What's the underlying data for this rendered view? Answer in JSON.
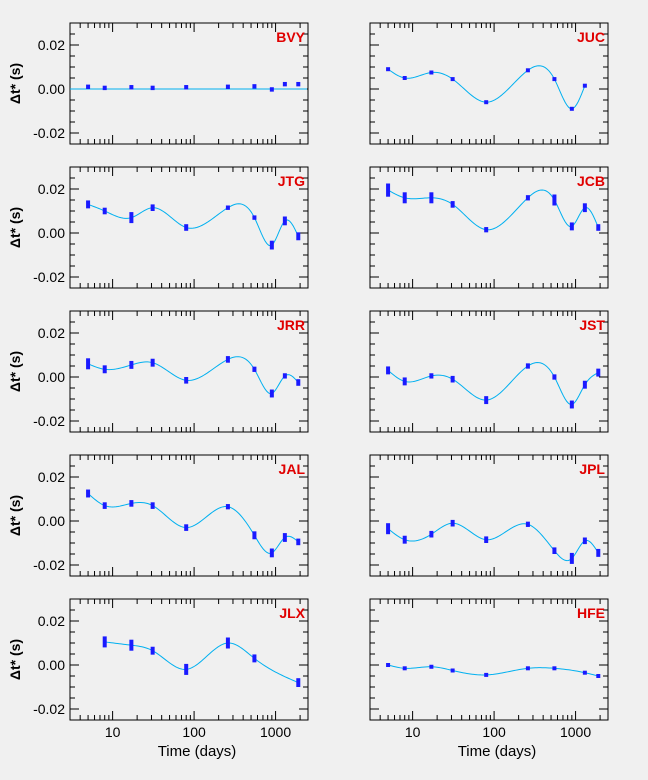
{
  "colors": {
    "background": "#f0f0f0",
    "marker": "#1a1aff",
    "curve": "#00b0f0",
    "label": "#e00000"
  },
  "chart_data": {
    "type": "scatter",
    "x_scale": "log",
    "xlim": [
      3,
      2500
    ],
    "ylim": [
      -0.025,
      0.03
    ],
    "x_ticks": [
      10,
      100,
      1000
    ],
    "x_tick_labels": [
      "10",
      "100",
      "1000"
    ],
    "y_ticks": [
      -0.02,
      0,
      0.02
    ],
    "y_tick_labels": [
      "-0.02",
      "0.00",
      "0.02"
    ],
    "ylabel": "Δt* (s)",
    "xlabel": "Time (days)",
    "grid": false,
    "x": [
      5,
      8,
      17,
      31,
      80,
      260,
      550,
      900,
      1300,
      1900
    ],
    "panels": [
      {
        "name": "BVY",
        "x": [
          5,
          8,
          17,
          31,
          80,
          260,
          550,
          900,
          1300,
          1900
        ],
        "y": [
          0.001,
          0.0005,
          0.0008,
          0.0005,
          0.0008,
          0.001,
          0.0012,
          -0.0002,
          0.0022,
          0.0022
        ],
        "err": [
          0.001,
          0.001,
          0.001,
          0.001,
          0.001,
          0.001,
          0.001,
          0.001,
          0.001,
          0.001
        ],
        "curve": "flat"
      },
      {
        "name": "JUC",
        "x": [
          5,
          8,
          17,
          31,
          80,
          260,
          550,
          900,
          1300
        ],
        "y": [
          0.009,
          0.005,
          0.0075,
          0.0045,
          -0.006,
          0.0085,
          0.0045,
          -0.009,
          0.0015
        ],
        "err": [
          0.0008,
          0.0008,
          0.0008,
          0.0008,
          0.0008,
          0.0008,
          0.0008,
          0.0008,
          0.0008
        ],
        "curve": "smooth"
      },
      {
        "name": "JTG",
        "x": [
          5,
          8,
          17,
          31,
          80,
          260,
          550,
          900,
          1300,
          1900
        ],
        "y": [
          0.013,
          0.01,
          0.007,
          0.0115,
          0.0025,
          0.0115,
          0.007,
          -0.0055,
          0.0055,
          -0.0015
        ],
        "err": [
          0.0018,
          0.0015,
          0.0025,
          0.0015,
          0.0015,
          0.001,
          0.001,
          0.002,
          0.002,
          0.0018
        ],
        "curve": "smooth"
      },
      {
        "name": "JCB",
        "x": [
          5,
          8,
          17,
          31,
          80,
          260,
          550,
          900,
          1300,
          1900
        ],
        "y": [
          0.0195,
          0.016,
          0.016,
          0.013,
          0.0015,
          0.016,
          0.015,
          0.003,
          0.0115,
          0.0025
        ],
        "err": [
          0.003,
          0.0025,
          0.0025,
          0.0015,
          0.0012,
          0.0012,
          0.0025,
          0.0018,
          0.002,
          0.0015
        ],
        "curve": "smooth"
      },
      {
        "name": "JRR",
        "x": [
          5,
          8,
          17,
          31,
          80,
          260,
          550,
          900,
          1300,
          1900
        ],
        "y": [
          0.006,
          0.0035,
          0.0055,
          0.0065,
          -0.0015,
          0.008,
          0.0035,
          -0.0075,
          0.0005,
          -0.0025
        ],
        "err": [
          0.0025,
          0.0018,
          0.0018,
          0.0018,
          0.0015,
          0.0015,
          0.0012,
          0.0018,
          0.0012,
          0.0015
        ],
        "curve": "smooth"
      },
      {
        "name": "JST",
        "x": [
          5,
          8,
          17,
          31,
          80,
          260,
          550,
          900,
          1300,
          1900
        ],
        "y": [
          0.003,
          -0.002,
          0.0005,
          -0.001,
          -0.0105,
          0.005,
          0.0,
          -0.0125,
          -0.0035,
          0.002
        ],
        "err": [
          0.0018,
          0.0018,
          0.0012,
          0.0015,
          0.0018,
          0.0012,
          0.0012,
          0.0018,
          0.0018,
          0.0018
        ],
        "curve": "smooth"
      },
      {
        "name": "JAL",
        "x": [
          5,
          8,
          17,
          31,
          80,
          260,
          550,
          900,
          1300,
          1900
        ],
        "y": [
          0.0125,
          0.007,
          0.008,
          0.007,
          -0.003,
          0.0065,
          -0.0065,
          -0.0145,
          -0.0075,
          -0.0095
        ],
        "err": [
          0.0018,
          0.0015,
          0.0015,
          0.0015,
          0.0015,
          0.0012,
          0.0018,
          0.002,
          0.002,
          0.0015
        ],
        "curve": "smooth"
      },
      {
        "name": "JPL",
        "x": [
          5,
          8,
          17,
          31,
          80,
          260,
          550,
          900,
          1300,
          1900
        ],
        "y": [
          -0.0035,
          -0.0085,
          -0.006,
          -0.001,
          -0.0085,
          -0.0015,
          -0.0135,
          -0.017,
          -0.009,
          -0.0145
        ],
        "err": [
          0.0025,
          0.0018,
          0.0015,
          0.0015,
          0.0015,
          0.0012,
          0.0015,
          0.0025,
          0.0015,
          0.0018
        ],
        "curve": "smooth"
      },
      {
        "name": "JLX",
        "x": [
          8,
          17,
          31,
          80,
          260,
          550,
          1900
        ],
        "y": [
          0.0105,
          0.009,
          0.0065,
          -0.002,
          0.01,
          0.003,
          -0.008
        ],
        "err": [
          0.0025,
          0.0025,
          0.0018,
          0.0025,
          0.0025,
          0.0018,
          0.002
        ],
        "curve": "smooth"
      },
      {
        "name": "HFE",
        "x": [
          5,
          8,
          17,
          31,
          80,
          260,
          550,
          1300,
          1900
        ],
        "y": [
          0.0,
          -0.0015,
          -0.0008,
          -0.0025,
          -0.0045,
          -0.0015,
          -0.0015,
          -0.0035,
          -0.005
        ],
        "err": [
          0.0008,
          0.0008,
          0.0008,
          0.0008,
          0.0008,
          0.0008,
          0.0008,
          0.0008,
          0.0008
        ],
        "curve": "smooth"
      }
    ]
  }
}
